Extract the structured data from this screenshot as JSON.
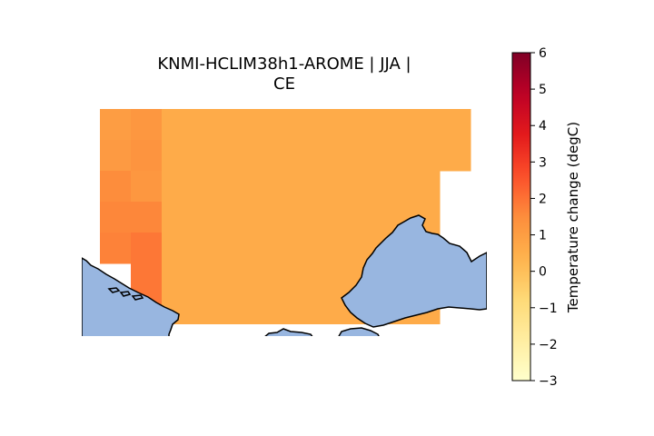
{
  "title": {
    "line1": "KNMI-HCLIM38h1-AROME | JJA |",
    "line2": "CE"
  },
  "colors": {
    "sea": "#98b6e0",
    "coast": "#000000",
    "background": "#ffffff"
  },
  "chart_data": {
    "type": "heatmap",
    "colorbar": {
      "label": "Temperature change (degC)",
      "range": [
        -3,
        6
      ],
      "ticks": [
        6,
        5,
        4,
        3,
        2,
        1,
        0,
        -1,
        -2,
        -3
      ],
      "tick_labels": [
        "6",
        "5",
        "4",
        "3",
        "2",
        "1",
        "0",
        "−1",
        "−2",
        "−3"
      ],
      "colormap": "YlOrRd"
    },
    "rows": 7,
    "cols": 12,
    "values": [
      [
        1.0,
        1.2,
        0.6,
        0.6,
        0.6,
        0.6,
        0.6,
        0.6,
        0.6,
        0.6,
        0.6,
        0.6
      ],
      [
        1.1,
        1.3,
        0.6,
        0.6,
        0.6,
        0.6,
        0.6,
        0.6,
        0.6,
        0.6,
        0.6,
        0.6
      ],
      [
        1.5,
        1.2,
        0.6,
        0.6,
        0.6,
        0.6,
        0.6,
        0.6,
        0.6,
        0.6,
        0.6,
        null
      ],
      [
        1.6,
        1.6,
        0.6,
        0.6,
        0.6,
        0.6,
        0.6,
        0.6,
        0.6,
        0.6,
        0.6,
        null
      ],
      [
        1.7,
        1.9,
        0.6,
        0.6,
        0.6,
        0.6,
        0.6,
        0.6,
        0.6,
        0.6,
        0.6,
        null
      ],
      [
        null,
        1.9,
        0.6,
        0.6,
        0.6,
        0.6,
        0.6,
        0.6,
        0.6,
        0.6,
        0.6,
        null
      ],
      [
        null,
        1.9,
        0.6,
        0.6,
        0.6,
        0.6,
        0.6,
        0.6,
        0.6,
        0.6,
        0.6,
        null
      ]
    ]
  }
}
